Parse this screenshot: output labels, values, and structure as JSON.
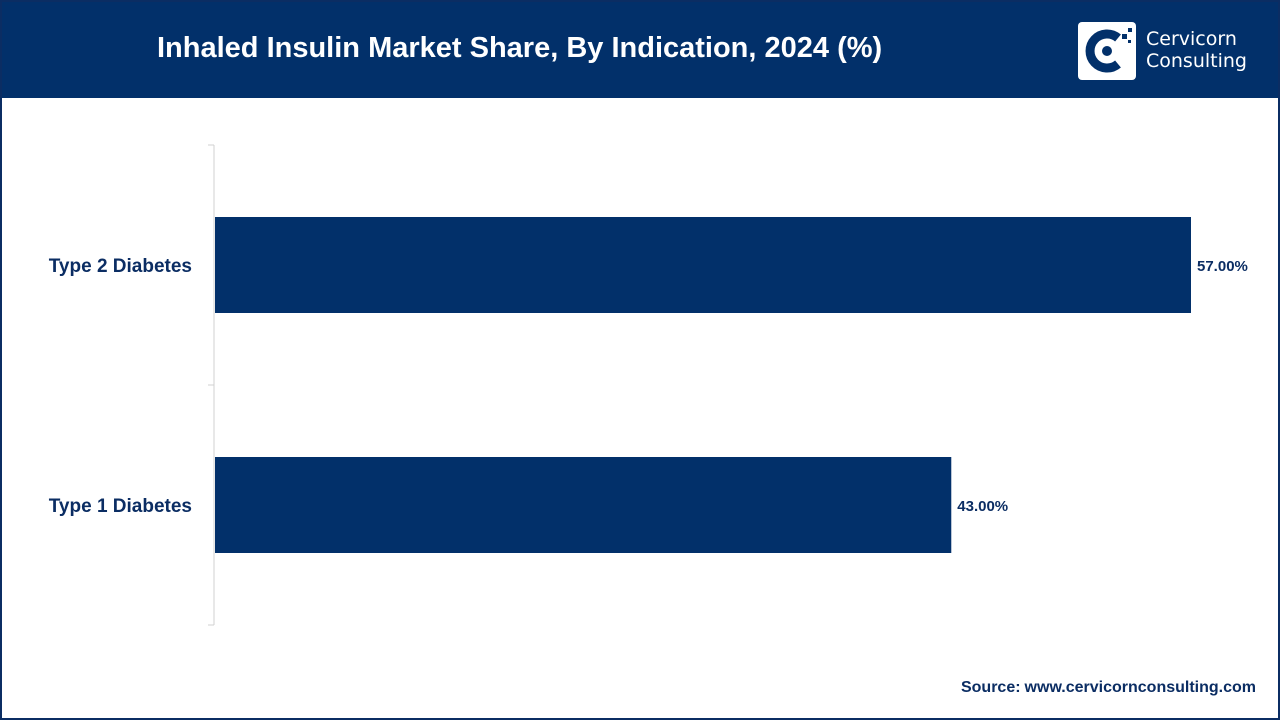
{
  "header": {
    "title": "Inhaled Insulin Market Share, By Indication, 2024 (%)"
  },
  "logo": {
    "line1": "Cervicorn",
    "line2": "Consulting",
    "icon": "cervicorn-c-logo-icon"
  },
  "colors": {
    "header_bg": "#02306a",
    "bar": "#02306a",
    "text": "#0b2d63",
    "axis": "#d0d0d0"
  },
  "source": {
    "label": "Source:",
    "value": "www.cervicornconsulting.com"
  },
  "chart_data": {
    "type": "bar",
    "orientation": "horizontal",
    "title": "Inhaled Insulin Market Share, By Indication, 2024 (%)",
    "categories": [
      "Type 2 Diabetes",
      "Type 1 Diabetes"
    ],
    "values": [
      57.0,
      43.0
    ],
    "value_labels": [
      "57.00%",
      "43.00%"
    ],
    "xlim": [
      0,
      57
    ],
    "xlabel": "",
    "ylabel": "",
    "grid": false,
    "legend": "none"
  }
}
